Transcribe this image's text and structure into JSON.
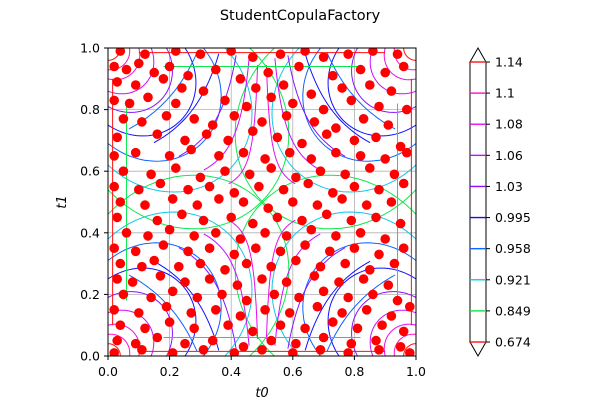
{
  "chart_data": {
    "type": "contour",
    "title": "StudentCopulaFactory",
    "xlabel": "t0",
    "ylabel": "t1",
    "xlim": [
      0.0,
      1.0
    ],
    "ylim": [
      0.0,
      1.0
    ],
    "xticks": [
      "0.0",
      "0.2",
      "0.4",
      "0.6",
      "0.8",
      "1.0"
    ],
    "yticks": [
      "0.0",
      "0.2",
      "0.4",
      "0.6",
      "0.8",
      "1.0"
    ],
    "grid": true,
    "colorbar": {
      "placement": "right",
      "extend": "both",
      "levels": [
        {
          "label": "1.14",
          "color": "#ff1010"
        },
        {
          "label": "1.1",
          "color": "#ff10c8"
        },
        {
          "label": "1.08",
          "color": "#e60fe6"
        },
        {
          "label": "1.06",
          "color": "#c810ff"
        },
        {
          "label": "1.03",
          "color": "#8a10ff"
        },
        {
          "label": "0.995",
          "color": "#1010ff"
        },
        {
          "label": "0.958",
          "color": "#1064ff"
        },
        {
          "label": "0.921",
          "color": "#10c8e6"
        },
        {
          "label": "0.849",
          "color": "#10e650"
        },
        {
          "label": "0.674",
          "color": "#ff1010"
        }
      ]
    },
    "scatter": {
      "color": "#ff0000",
      "points": [
        [
          0.04,
          0.99
        ],
        [
          0.12,
          0.98
        ],
        [
          0.22,
          0.99
        ],
        [
          0.3,
          0.98
        ],
        [
          0.4,
          0.99
        ],
        [
          0.47,
          0.97
        ],
        [
          0.56,
          0.98
        ],
        [
          0.64,
          0.99
        ],
        [
          0.7,
          0.97
        ],
        [
          0.78,
          0.98
        ],
        [
          0.86,
          0.99
        ],
        [
          0.94,
          0.98
        ],
        [
          0.02,
          0.94
        ],
        [
          0.06,
          0.93
        ],
        [
          0.1,
          0.95
        ],
        [
          0.15,
          0.92
        ],
        [
          0.2,
          0.94
        ],
        [
          0.26,
          0.91
        ],
        [
          0.35,
          0.93
        ],
        [
          0.43,
          0.9
        ],
        [
          0.52,
          0.92
        ],
        [
          0.62,
          0.94
        ],
        [
          0.73,
          0.91
        ],
        [
          0.82,
          0.93
        ],
        [
          0.9,
          0.92
        ],
        [
          0.96,
          0.94
        ],
        [
          0.03,
          0.89
        ],
        [
          0.09,
          0.88
        ],
        [
          0.18,
          0.9
        ],
        [
          0.24,
          0.87
        ],
        [
          0.31,
          0.86
        ],
        [
          0.48,
          0.87
        ],
        [
          0.57,
          0.88
        ],
        [
          0.66,
          0.85
        ],
        [
          0.76,
          0.87
        ],
        [
          0.85,
          0.88
        ],
        [
          0.92,
          0.86
        ],
        [
          0.02,
          0.83
        ],
        [
          0.07,
          0.82
        ],
        [
          0.13,
          0.84
        ],
        [
          0.22,
          0.82
        ],
        [
          0.38,
          0.83
        ],
        [
          0.45,
          0.81
        ],
        [
          0.53,
          0.84
        ],
        [
          0.6,
          0.82
        ],
        [
          0.7,
          0.8
        ],
        [
          0.79,
          0.83
        ],
        [
          0.88,
          0.81
        ],
        [
          0.97,
          0.8
        ],
        [
          0.05,
          0.77
        ],
        [
          0.11,
          0.76
        ],
        [
          0.19,
          0.78
        ],
        [
          0.28,
          0.77
        ],
        [
          0.34,
          0.75
        ],
        [
          0.41,
          0.78
        ],
        [
          0.5,
          0.76
        ],
        [
          0.58,
          0.78
        ],
        [
          0.67,
          0.76
        ],
        [
          0.74,
          0.74
        ],
        [
          0.83,
          0.77
        ],
        [
          0.91,
          0.75
        ],
        [
          0.03,
          0.71
        ],
        [
          0.16,
          0.72
        ],
        [
          0.25,
          0.7
        ],
        [
          0.32,
          0.72
        ],
        [
          0.39,
          0.7
        ],
        [
          0.47,
          0.73
        ],
        [
          0.55,
          0.71
        ],
        [
          0.63,
          0.69
        ],
        [
          0.71,
          0.72
        ],
        [
          0.8,
          0.7
        ],
        [
          0.87,
          0.71
        ],
        [
          0.95,
          0.68
        ],
        [
          0.02,
          0.65
        ],
        [
          0.09,
          0.66
        ],
        [
          0.2,
          0.65
        ],
        [
          0.27,
          0.67
        ],
        [
          0.36,
          0.65
        ],
        [
          0.44,
          0.66
        ],
        [
          0.51,
          0.64
        ],
        [
          0.59,
          0.66
        ],
        [
          0.66,
          0.64
        ],
        [
          0.74,
          0.66
        ],
        [
          0.82,
          0.65
        ],
        [
          0.9,
          0.64
        ],
        [
          0.97,
          0.66
        ],
        [
          0.05,
          0.6
        ],
        [
          0.14,
          0.59
        ],
        [
          0.22,
          0.61
        ],
        [
          0.3,
          0.58
        ],
        [
          0.38,
          0.6
        ],
        [
          0.46,
          0.59
        ],
        [
          0.53,
          0.61
        ],
        [
          0.61,
          0.58
        ],
        [
          0.69,
          0.6
        ],
        [
          0.77,
          0.59
        ],
        [
          0.85,
          0.61
        ],
        [
          0.93,
          0.59
        ],
        [
          0.02,
          0.55
        ],
        [
          0.1,
          0.54
        ],
        [
          0.17,
          0.56
        ],
        [
          0.26,
          0.54
        ],
        [
          0.33,
          0.55
        ],
        [
          0.41,
          0.53
        ],
        [
          0.49,
          0.55
        ],
        [
          0.57,
          0.54
        ],
        [
          0.65,
          0.56
        ],
        [
          0.73,
          0.53
        ],
        [
          0.8,
          0.55
        ],
        [
          0.88,
          0.54
        ],
        [
          0.96,
          0.56
        ],
        [
          0.04,
          0.5
        ],
        [
          0.12,
          0.49
        ],
        [
          0.21,
          0.51
        ],
        [
          0.29,
          0.49
        ],
        [
          0.36,
          0.51
        ],
        [
          0.44,
          0.5
        ],
        [
          0.52,
          0.48
        ],
        [
          0.6,
          0.5
        ],
        [
          0.68,
          0.49
        ],
        [
          0.76,
          0.51
        ],
        [
          0.84,
          0.49
        ],
        [
          0.92,
          0.5
        ],
        [
          0.03,
          0.45
        ],
        [
          0.16,
          0.44
        ],
        [
          0.24,
          0.46
        ],
        [
          0.31,
          0.44
        ],
        [
          0.4,
          0.45
        ],
        [
          0.47,
          0.43
        ],
        [
          0.55,
          0.45
        ],
        [
          0.63,
          0.44
        ],
        [
          0.71,
          0.46
        ],
        [
          0.79,
          0.44
        ],
        [
          0.87,
          0.45
        ],
        [
          0.95,
          0.43
        ],
        [
          0.06,
          0.4
        ],
        [
          0.13,
          0.39
        ],
        [
          0.2,
          0.41
        ],
        [
          0.28,
          0.39
        ],
        [
          0.35,
          0.4
        ],
        [
          0.43,
          0.38
        ],
        [
          0.51,
          0.4
        ],
        [
          0.58,
          0.39
        ],
        [
          0.66,
          0.41
        ],
        [
          0.74,
          0.39
        ],
        [
          0.82,
          0.4
        ],
        [
          0.9,
          0.38
        ],
        [
          0.02,
          0.35
        ],
        [
          0.09,
          0.34
        ],
        [
          0.18,
          0.36
        ],
        [
          0.26,
          0.34
        ],
        [
          0.33,
          0.35
        ],
        [
          0.41,
          0.33
        ],
        [
          0.48,
          0.35
        ],
        [
          0.56,
          0.34
        ],
        [
          0.64,
          0.36
        ],
        [
          0.72,
          0.34
        ],
        [
          0.8,
          0.35
        ],
        [
          0.88,
          0.33
        ],
        [
          0.96,
          0.35
        ],
        [
          0.04,
          0.3
        ],
        [
          0.11,
          0.29
        ],
        [
          0.15,
          0.31
        ],
        [
          0.23,
          0.29
        ],
        [
          0.3,
          0.3
        ],
        [
          0.38,
          0.28
        ],
        [
          0.45,
          0.3
        ],
        [
          0.53,
          0.29
        ],
        [
          0.61,
          0.31
        ],
        [
          0.69,
          0.29
        ],
        [
          0.77,
          0.3
        ],
        [
          0.85,
          0.28
        ],
        [
          0.93,
          0.3
        ],
        [
          0.03,
          0.25
        ],
        [
          0.08,
          0.24
        ],
        [
          0.17,
          0.26
        ],
        [
          0.25,
          0.24
        ],
        [
          0.33,
          0.25
        ],
        [
          0.42,
          0.23
        ],
        [
          0.5,
          0.25
        ],
        [
          0.58,
          0.24
        ],
        [
          0.67,
          0.26
        ],
        [
          0.75,
          0.24
        ],
        [
          0.83,
          0.25
        ],
        [
          0.91,
          0.23
        ],
        [
          0.05,
          0.2
        ],
        [
          0.14,
          0.19
        ],
        [
          0.21,
          0.21
        ],
        [
          0.29,
          0.19
        ],
        [
          0.37,
          0.2
        ],
        [
          0.45,
          0.18
        ],
        [
          0.54,
          0.2
        ],
        [
          0.62,
          0.19
        ],
        [
          0.7,
          0.21
        ],
        [
          0.78,
          0.19
        ],
        [
          0.86,
          0.2
        ],
        [
          0.94,
          0.18
        ],
        [
          0.02,
          0.15
        ],
        [
          0.1,
          0.14
        ],
        [
          0.19,
          0.16
        ],
        [
          0.27,
          0.14
        ],
        [
          0.35,
          0.15
        ],
        [
          0.43,
          0.13
        ],
        [
          0.51,
          0.15
        ],
        [
          0.59,
          0.14
        ],
        [
          0.68,
          0.16
        ],
        [
          0.76,
          0.14
        ],
        [
          0.84,
          0.15
        ],
        [
          0.92,
          0.13
        ],
        [
          0.98,
          0.16
        ],
        [
          0.04,
          0.1
        ],
        [
          0.12,
          0.09
        ],
        [
          0.2,
          0.11
        ],
        [
          0.28,
          0.09
        ],
        [
          0.39,
          0.1
        ],
        [
          0.47,
          0.08
        ],
        [
          0.56,
          0.1
        ],
        [
          0.64,
          0.09
        ],
        [
          0.73,
          0.11
        ],
        [
          0.81,
          0.09
        ],
        [
          0.89,
          0.1
        ],
        [
          0.96,
          0.08
        ],
        [
          0.03,
          0.05
        ],
        [
          0.09,
          0.04
        ],
        [
          0.16,
          0.06
        ],
        [
          0.25,
          0.04
        ],
        [
          0.34,
          0.05
        ],
        [
          0.44,
          0.03
        ],
        [
          0.53,
          0.05
        ],
        [
          0.61,
          0.04
        ],
        [
          0.7,
          0.06
        ],
        [
          0.79,
          0.04
        ],
        [
          0.87,
          0.05
        ],
        [
          0.95,
          0.03
        ],
        [
          0.02,
          0.01
        ],
        [
          0.11,
          0.02
        ],
        [
          0.21,
          0.01
        ],
        [
          0.31,
          0.02
        ],
        [
          0.41,
          0.01
        ],
        [
          0.5,
          0.02
        ],
        [
          0.6,
          0.01
        ],
        [
          0.69,
          0.02
        ],
        [
          0.78,
          0.01
        ],
        [
          0.88,
          0.02
        ],
        [
          0.98,
          0.01
        ]
      ]
    }
  }
}
